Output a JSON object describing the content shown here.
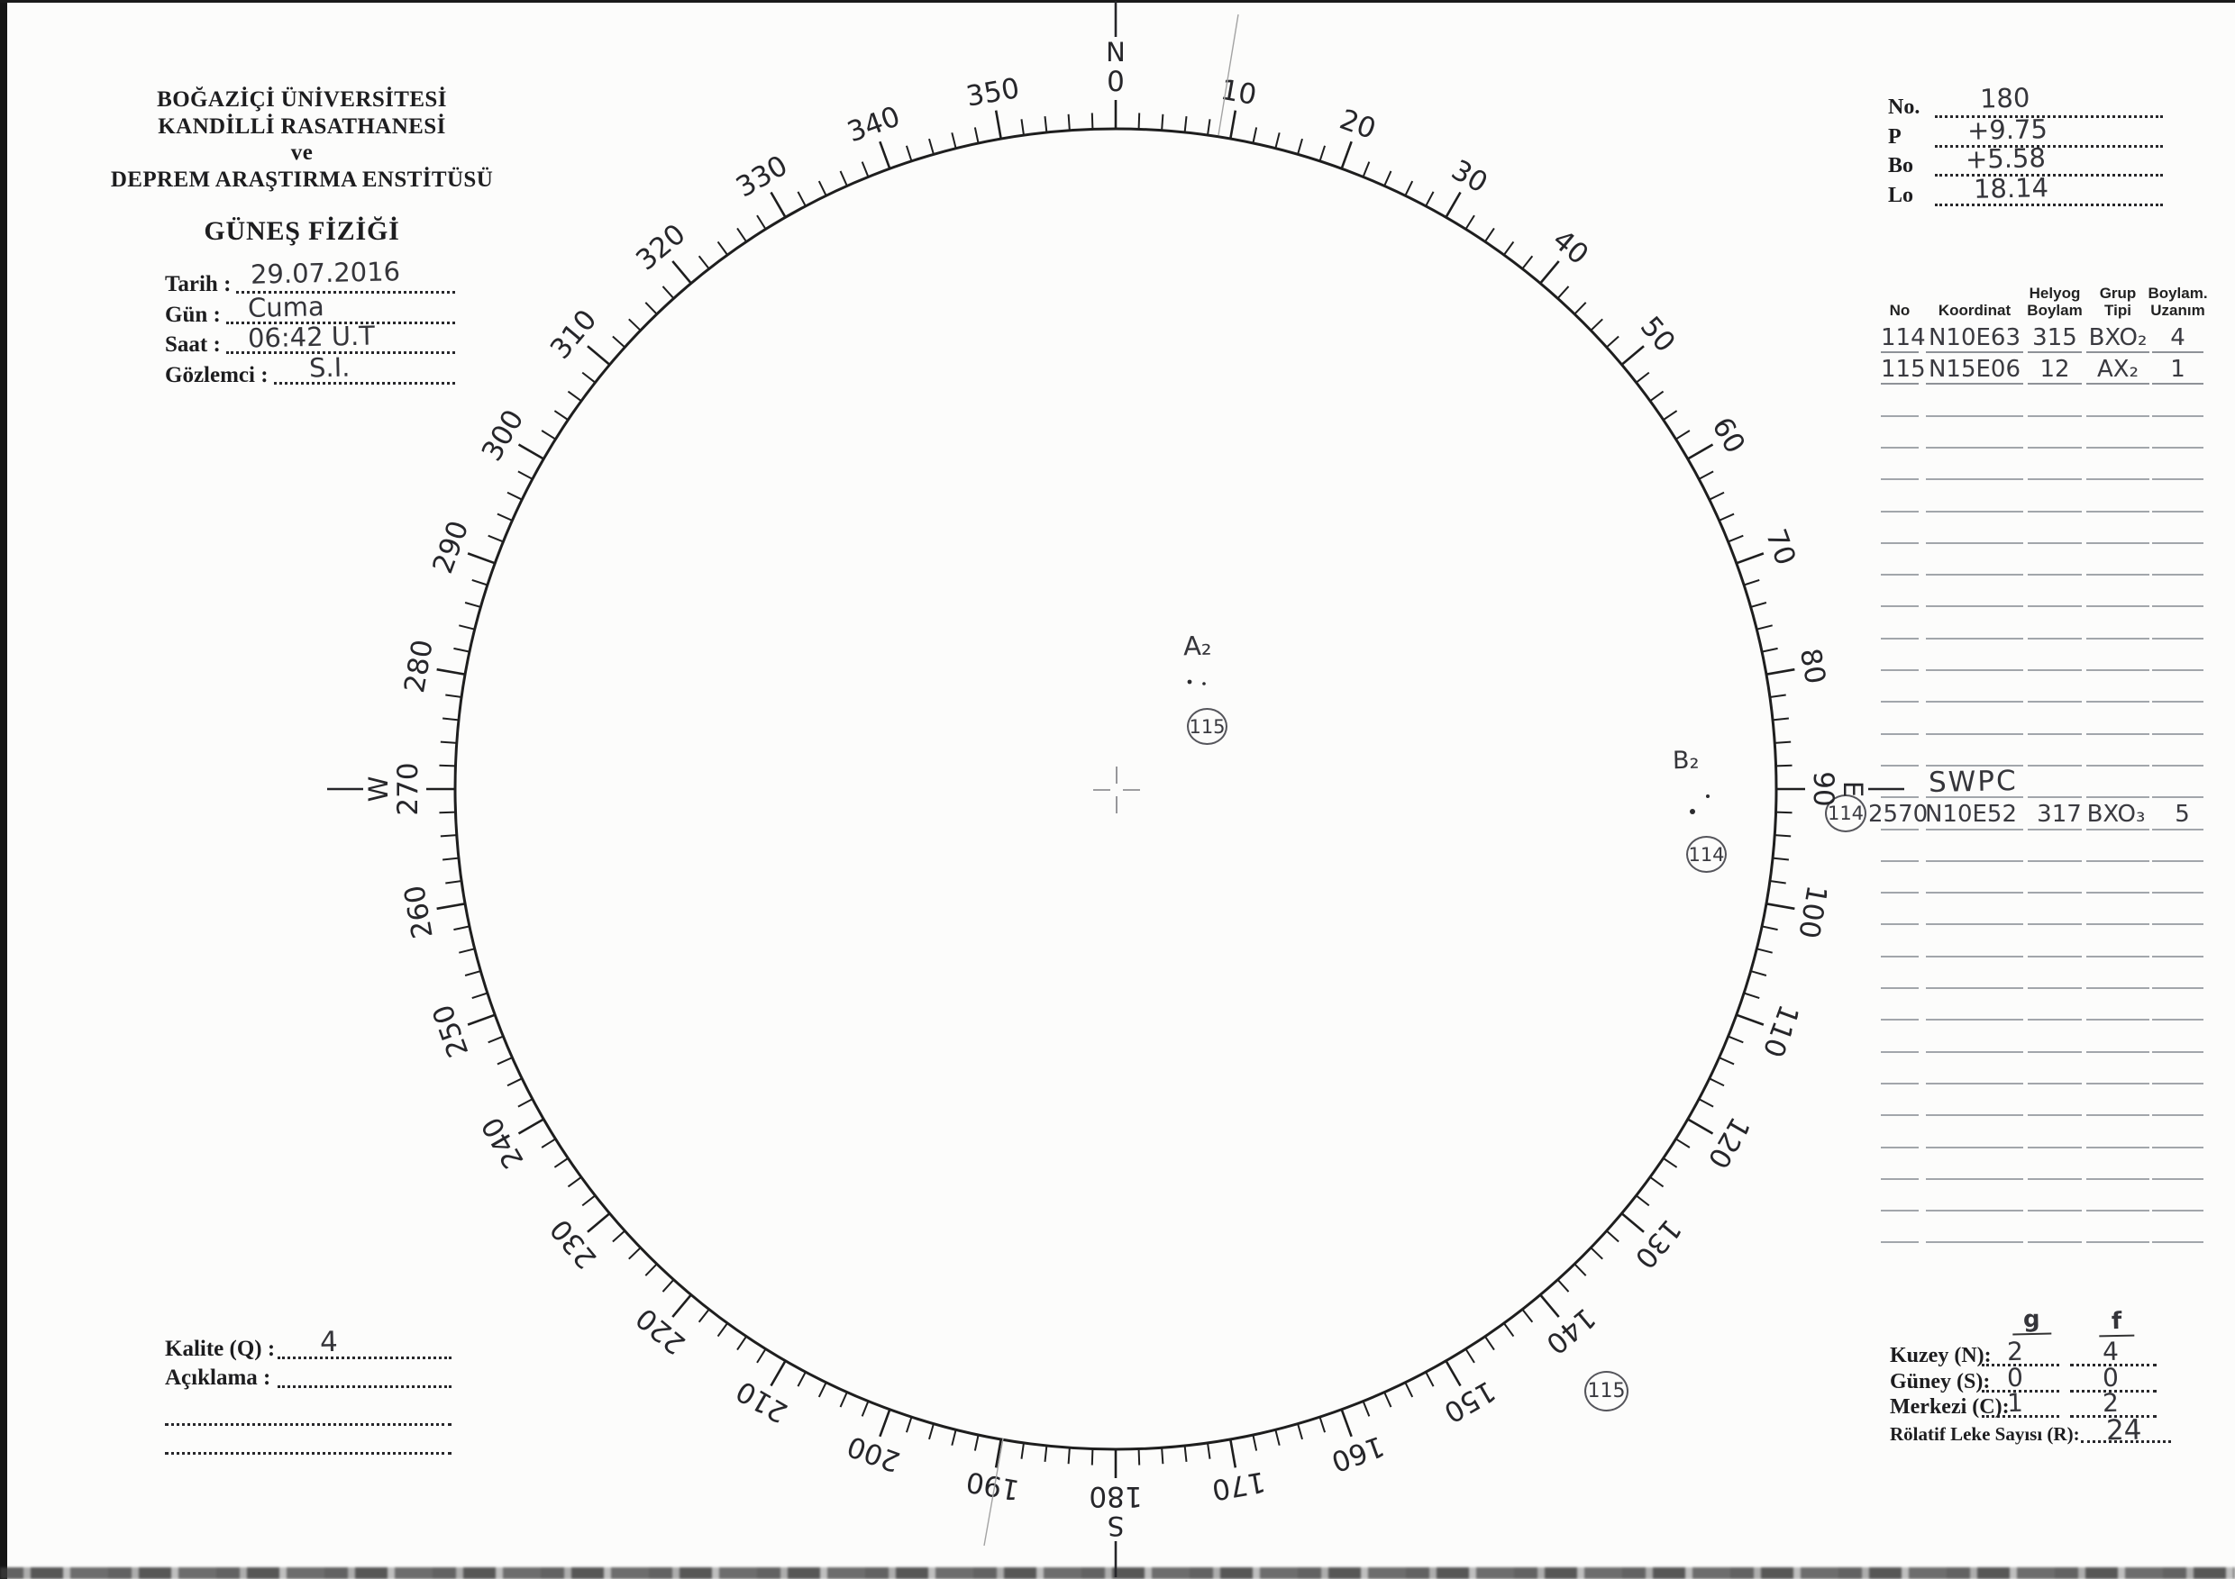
{
  "document": {
    "org_line1": "BOĞAZİÇİ ÜNİVERSİTESİ",
    "org_line2": "KANDİLLİ RASATHANESİ",
    "org_line3": "ve",
    "org_line4": "DEPREM ARAŞTIRMA ENSTİTÜSÜ",
    "title": "GÜNEŞ FİZİĞİ"
  },
  "observation_fields": [
    {
      "label": "Tarih :",
      "value": "29.07.2016"
    },
    {
      "label": "Gün :",
      "value": "Cuma"
    },
    {
      "label": "Saat :",
      "value": "06:42 U.T"
    },
    {
      "label": "Gözlemci :",
      "value": "S.I."
    }
  ],
  "ephemeris_fields": [
    {
      "label": "No.",
      "value": "180"
    },
    {
      "label": "P",
      "value": "+9.75"
    },
    {
      "label": "Bo",
      "value": "+5.58"
    },
    {
      "label": "Lo",
      "value": "18.14"
    }
  ],
  "group_table": {
    "columns": [
      [
        "No"
      ],
      [
        "Koordinat"
      ],
      [
        "Helyog",
        "Boylam"
      ],
      [
        "Grup",
        "Tipi"
      ],
      [
        "Boylam.",
        "Uzanım"
      ]
    ],
    "rows": [
      [
        "114",
        "N10E63",
        "315",
        "BXO₂",
        "4"
      ],
      [
        "115",
        "N15E06",
        "12",
        "AX₂",
        "1"
      ]
    ],
    "empty_rows_above_swpc": 12,
    "swpc_title": "SWPC",
    "swpc_row": {
      "circled_no": "114",
      "values": [
        "2570",
        "N10E52",
        "317",
        "BXO₃",
        "5"
      ]
    },
    "empty_rows_below_swpc": 13
  },
  "quality": {
    "fields": [
      {
        "label": "Kalite (Q) :",
        "value": "4"
      },
      {
        "label": "Açıklama :",
        "value": ""
      }
    ],
    "extra_blank_lines": 2
  },
  "sunspot_counts": {
    "col_headers": {
      "groups": "g",
      "spots": "f"
    },
    "rows": [
      {
        "label": "Kuzey (N):",
        "g": "2",
        "f": "4"
      },
      {
        "label": "Güney (S):",
        "g": "0",
        "f": "0"
      },
      {
        "label": "Merkezi (C):",
        "g": "1",
        "f": "2"
      }
    ],
    "relative": {
      "label": "Rölatif Leke Sayısı (R):",
      "value": "24"
    }
  },
  "solar_disk": {
    "degree_label_step": 10,
    "tick_step_degrees": 2,
    "cardinal_labels": {
      "0": "N",
      "90": "E",
      "180": "S",
      "270": "W"
    },
    "annotations": {
      "group_center": {
        "type_label": "A₂",
        "circled_no": "115"
      },
      "group_east_limb": {
        "type_label": "B₂",
        "circled_no": "114"
      },
      "outer_circled_no": "115"
    }
  }
}
